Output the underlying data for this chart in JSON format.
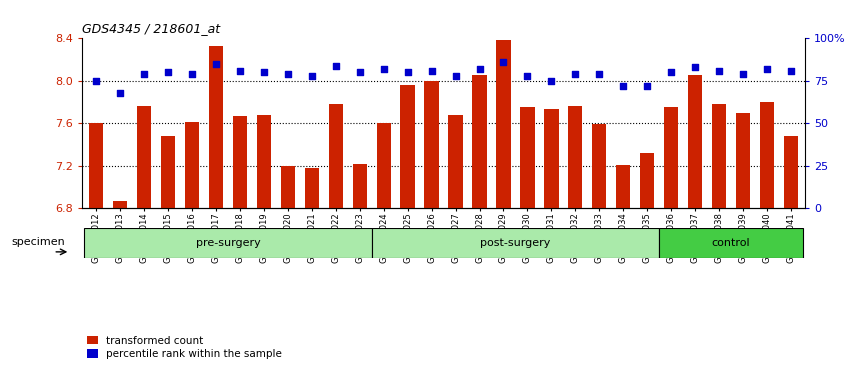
{
  "title": "GDS4345 / 218601_at",
  "categories": [
    "GSM842012",
    "GSM842013",
    "GSM842014",
    "GSM842015",
    "GSM842016",
    "GSM842017",
    "GSM842018",
    "GSM842019",
    "GSM842020",
    "GSM842021",
    "GSM842022",
    "GSM842023",
    "GSM842024",
    "GSM842025",
    "GSM842026",
    "GSM842027",
    "GSM842028",
    "GSM842029",
    "GSM842030",
    "GSM842031",
    "GSM842032",
    "GSM842033",
    "GSM842034",
    "GSM842035",
    "GSM842036",
    "GSM842037",
    "GSM842038",
    "GSM842039",
    "GSM842040",
    "GSM842041"
  ],
  "red_values": [
    7.6,
    6.87,
    7.76,
    7.48,
    7.61,
    8.33,
    7.67,
    7.68,
    7.2,
    7.18,
    7.78,
    7.22,
    7.6,
    7.96,
    8.0,
    7.68,
    8.05,
    8.38,
    7.75,
    7.73,
    7.76,
    7.59,
    7.21,
    7.32,
    7.75,
    8.05,
    7.78,
    7.7,
    7.8,
    7.48
  ],
  "blue_values": [
    75,
    68,
    79,
    80,
    79,
    85,
    81,
    80,
    79,
    78,
    84,
    80,
    82,
    80,
    81,
    78,
    82,
    86,
    78,
    75,
    79,
    79,
    72,
    72,
    80,
    83,
    81,
    79,
    82,
    81
  ],
  "ylim_left": [
    6.8,
    8.4
  ],
  "ylim_right": [
    0,
    100
  ],
  "yticks_left": [
    6.8,
    7.2,
    7.6,
    8.0,
    8.4
  ],
  "yticks_right": [
    0,
    25,
    50,
    75,
    100
  ],
  "ytick_labels_right": [
    "0",
    "25",
    "50",
    "75",
    "100%"
  ],
  "bar_color": "#cc2200",
  "dot_color": "#0000cc",
  "bar_bottom": 6.8,
  "dotted_lines": [
    8.0,
    7.6,
    7.2
  ],
  "group_info": [
    {
      "label": "pre-surgery",
      "start": 0,
      "end": 11,
      "color": "#aaeaaa"
    },
    {
      "label": "post-surgery",
      "start": 12,
      "end": 23,
      "color": "#aaeaaa"
    },
    {
      "label": "control",
      "start": 24,
      "end": 29,
      "color": "#44cc44"
    }
  ],
  "legend_items": [
    {
      "color": "#cc2200",
      "label": "transformed count"
    },
    {
      "color": "#0000cc",
      "label": "percentile rank within the sample"
    }
  ]
}
